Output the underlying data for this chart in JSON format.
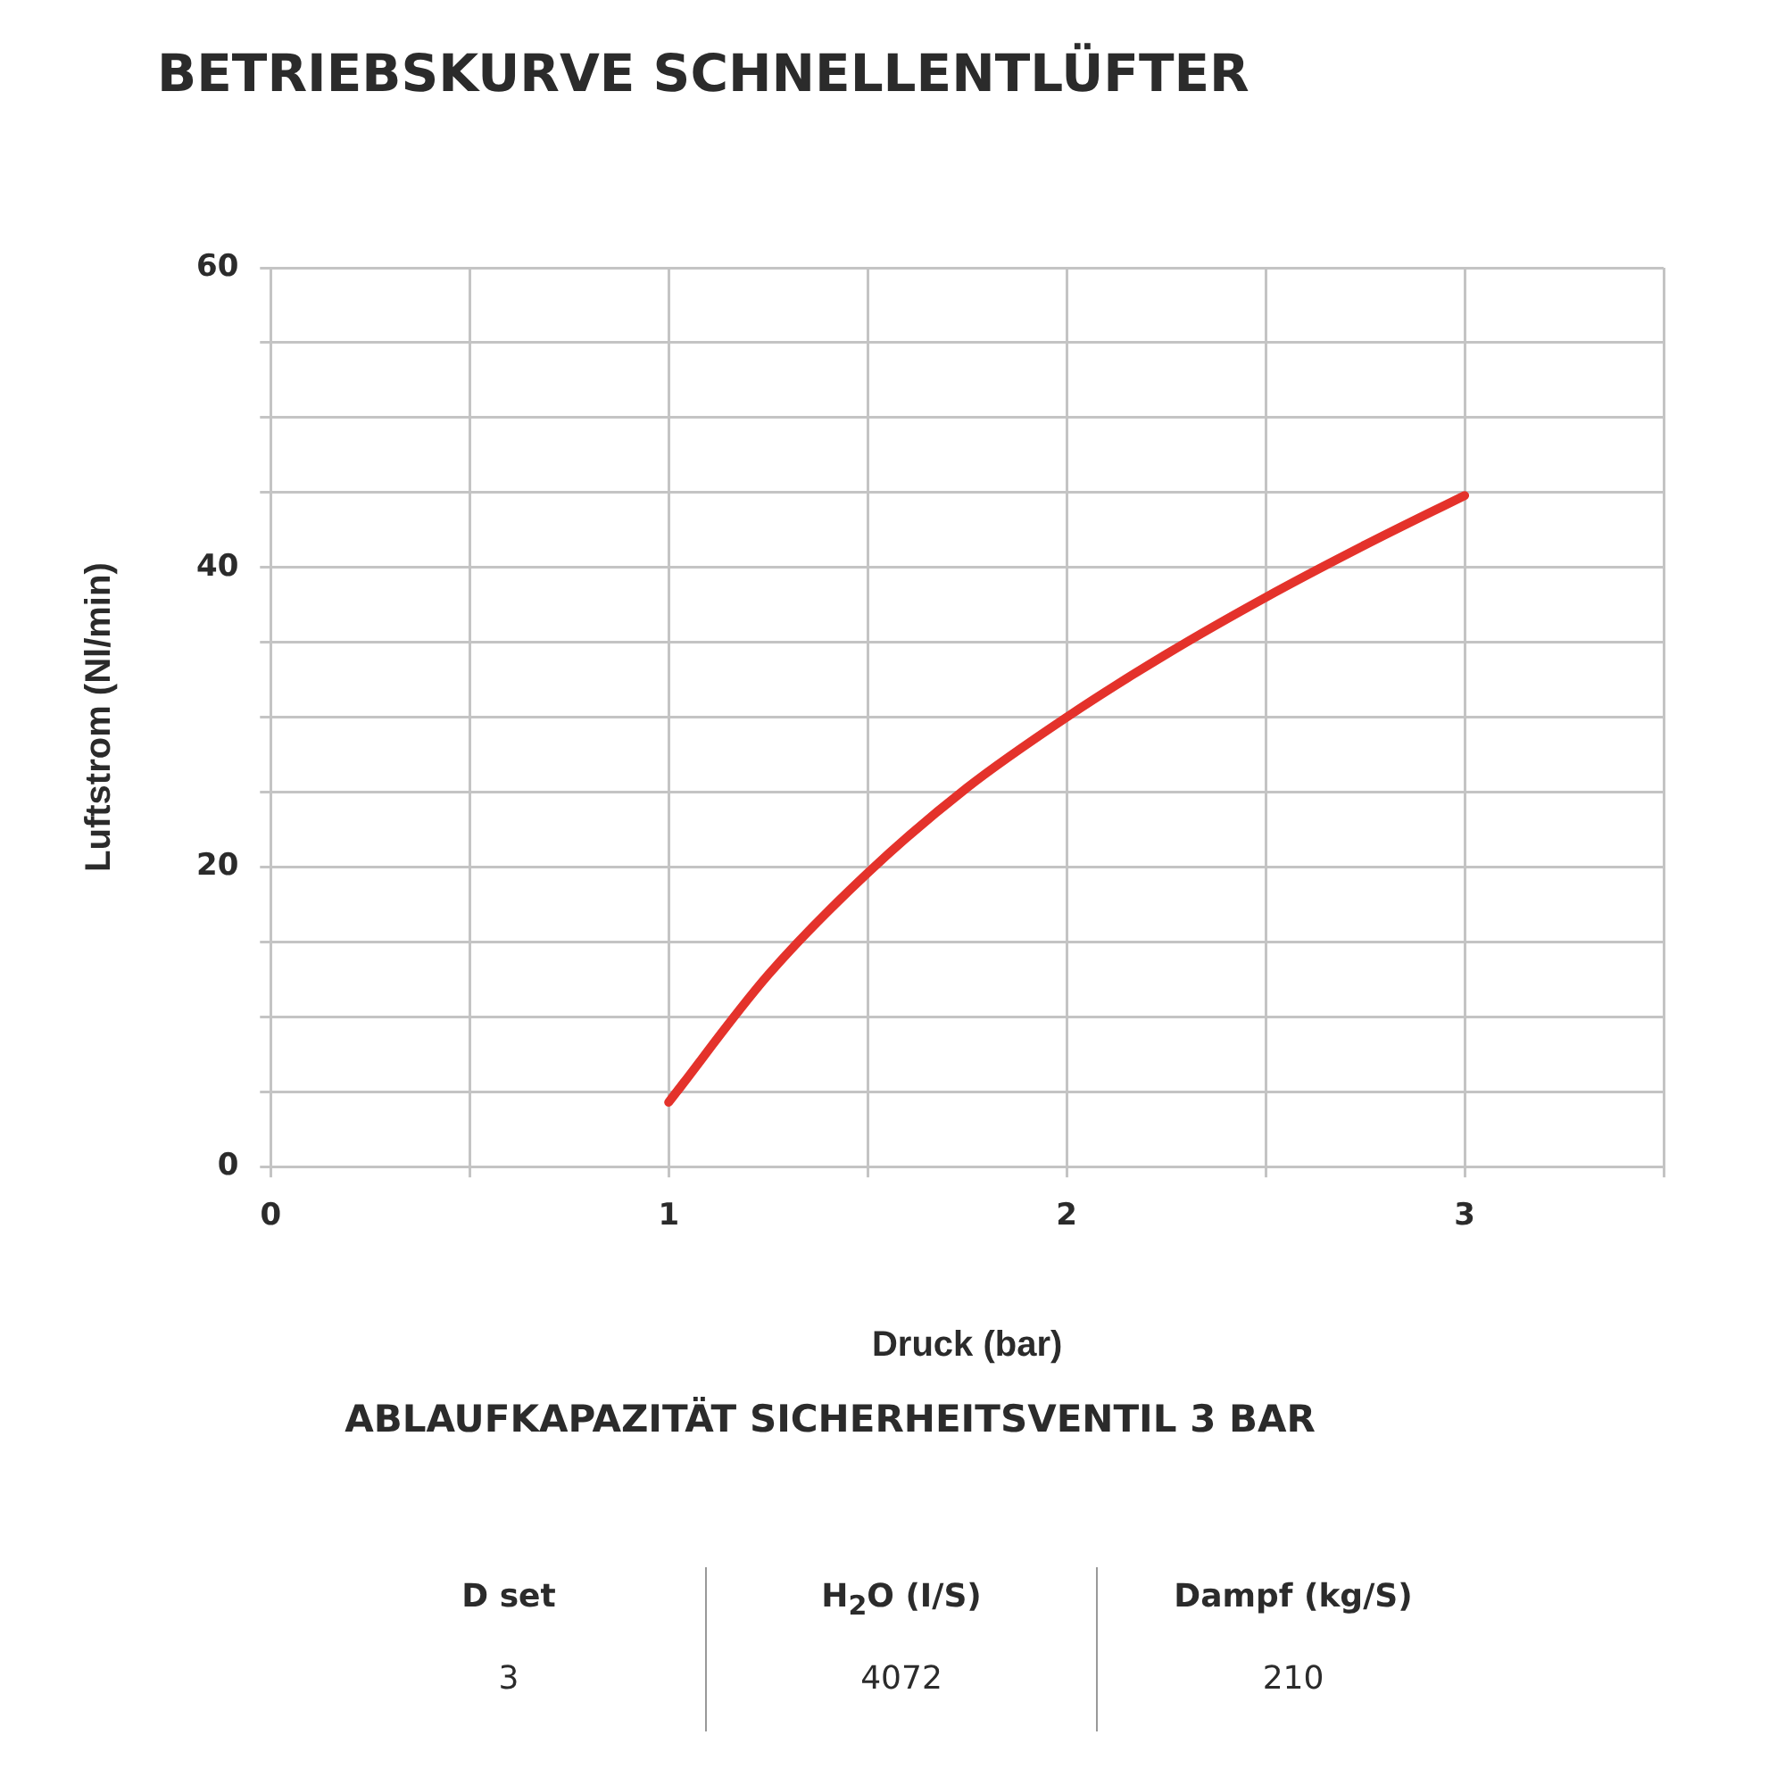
{
  "chart_data": {
    "type": "line",
    "title": "BETRIEBSKURVE SCHNELLENTLÜFTER",
    "xlabel": "Druck (bar)",
    "ylabel": "Luftstrom (Nl/min)",
    "x": [
      1,
      1.25,
      1.5,
      1.75,
      2,
      2.25,
      2.5,
      2.75,
      3
    ],
    "series": [
      {
        "color": "#e4322b",
        "values": [
          4.3,
          12.8,
          19.6,
          25.3,
          30,
          34.2,
          38,
          41.5,
          44.8
        ]
      }
    ],
    "xlim": [
      0,
      3.5
    ],
    "xticks": [
      0,
      {
        "value": 0.5,
        "label": null
      },
      1,
      {
        "value": 1.5,
        "label": null
      },
      2,
      {
        "value": 2.5,
        "label": null
      },
      3,
      {
        "value": 3.5,
        "label": null
      }
    ],
    "ylim": [
      0,
      60
    ],
    "yticks": [
      0,
      {
        "value": 5,
        "label": null
      },
      {
        "value": 10,
        "label": null
      },
      {
        "value": 15,
        "label": null
      },
      20,
      {
        "value": 25,
        "label": null
      },
      {
        "value": 30,
        "label": null
      },
      {
        "value": 35,
        "label": null
      },
      40,
      {
        "value": 45,
        "label": null
      },
      {
        "value": 50,
        "label": null
      },
      {
        "value": 55,
        "label": null
      },
      60
    ],
    "grid": true,
    "legend": false,
    "marker": "none",
    "line_style": "solid",
    "annotations": [
      "ABLAUFKAPAZITÄT SICHERHEITSVENTIL 3 BAR",
      "D set",
      "H$_{2}$O (I/S)",
      "Dampf (kg/S)",
      "3",
      "4072",
      "210"
    ]
  }
}
